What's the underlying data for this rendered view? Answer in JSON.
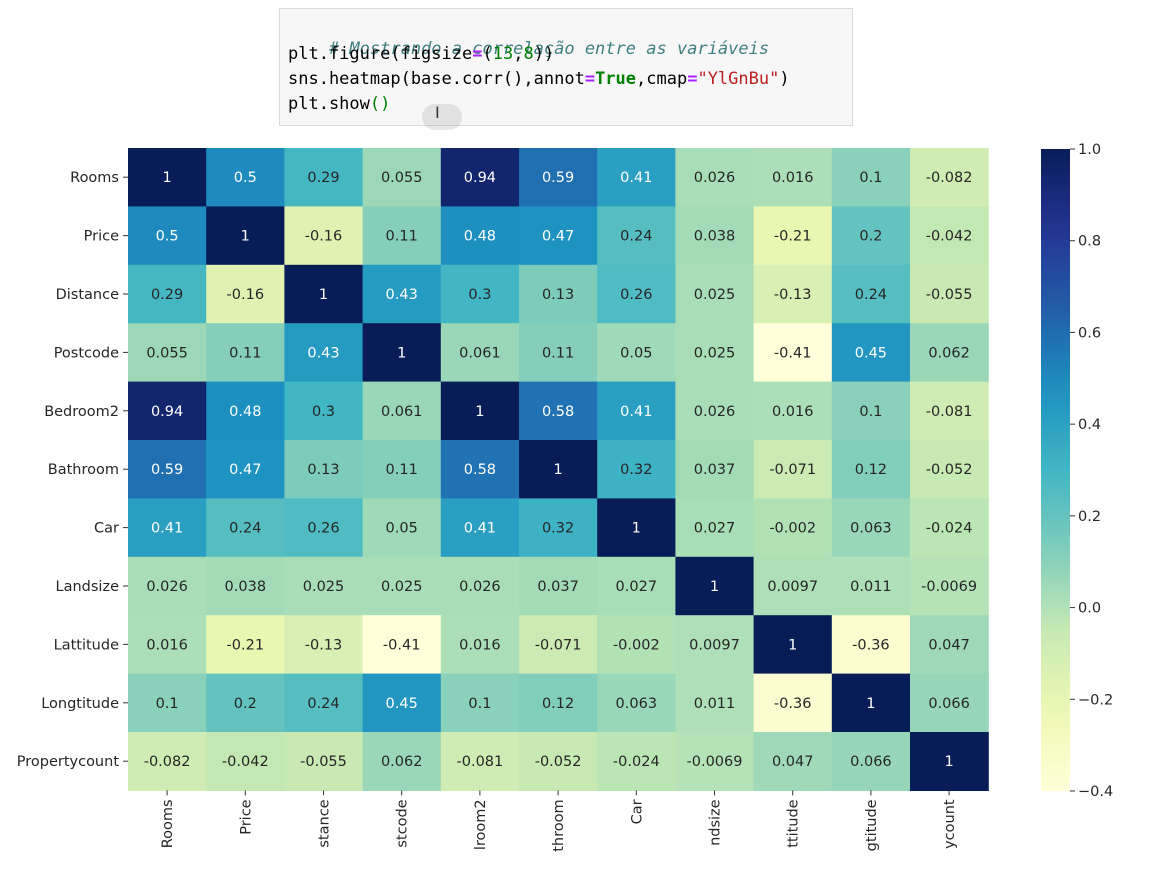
{
  "code_cell": {
    "comment": "# Mostrando a correlação entre as variáveis",
    "line2": {
      "a": "plt.figure(figsize",
      "eq": "=",
      "b": "(",
      "n1": "13",
      "c": ",",
      "n2": "8",
      "d": "))"
    },
    "line3": {
      "a": "sns.heatmap(base.corr(),annot",
      "eq1": "=",
      "kw": "True",
      "b": ",cmap",
      "eq2": "=",
      "str": "\"YlGnBu\"",
      "c": ")"
    },
    "line4": {
      "a": "plt.show",
      "paren": "()"
    },
    "cursor_icon": "text-cursor-icon"
  },
  "chart_data": {
    "type": "heatmap",
    "title": "",
    "colormap": "YlGnBu",
    "row_labels": [
      "Rooms",
      "Price",
      "Distance",
      "Postcode",
      "Bedroom2",
      "Bathroom",
      "Car",
      "Landsize",
      "Lattitude",
      "Longtitude",
      "Propertycount"
    ],
    "col_labels": [
      "Rooms",
      "Price",
      "stance",
      "stcode",
      "lroom2",
      "throom",
      "Car",
      "ndsize",
      "ttitude",
      "gtitude",
      "ycount"
    ],
    "annotations": [
      [
        "1",
        "0.5",
        "0.29",
        "0.055",
        "0.94",
        "0.59",
        "0.41",
        "0.026",
        "0.016",
        "0.1",
        "-0.082"
      ],
      [
        "0.5",
        "1",
        "-0.16",
        "0.11",
        "0.48",
        "0.47",
        "0.24",
        "0.038",
        "-0.21",
        "0.2",
        "-0.042"
      ],
      [
        "0.29",
        "-0.16",
        "1",
        "0.43",
        "0.3",
        "0.13",
        "0.26",
        "0.025",
        "-0.13",
        "0.24",
        "-0.055"
      ],
      [
        "0.055",
        "0.11",
        "0.43",
        "1",
        "0.061",
        "0.11",
        "0.05",
        "0.025",
        "-0.41",
        "0.45",
        "0.062"
      ],
      [
        "0.94",
        "0.48",
        "0.3",
        "0.061",
        "1",
        "0.58",
        "0.41",
        "0.026",
        "0.016",
        "0.1",
        "-0.081"
      ],
      [
        "0.59",
        "0.47",
        "0.13",
        "0.11",
        "0.58",
        "1",
        "0.32",
        "0.037",
        "-0.071",
        "0.12",
        "-0.052"
      ],
      [
        "0.41",
        "0.24",
        "0.26",
        "0.05",
        "0.41",
        "0.32",
        "1",
        "0.027",
        "-0.002",
        "0.063",
        "-0.024"
      ],
      [
        "0.026",
        "0.038",
        "0.025",
        "0.025",
        "0.026",
        "0.037",
        "0.027",
        "1",
        "0.0097",
        "0.011",
        "-0.0069"
      ],
      [
        "0.016",
        "-0.21",
        "-0.13",
        "-0.41",
        "0.016",
        "-0.071",
        "-0.002",
        "0.0097",
        "1",
        "-0.36",
        "0.047"
      ],
      [
        "0.1",
        "0.2",
        "0.24",
        "0.45",
        "0.1",
        "0.12",
        "0.063",
        "0.011",
        "-0.36",
        "1",
        "0.066"
      ],
      [
        "-0.082",
        "-0.042",
        "-0.055",
        "0.062",
        "-0.081",
        "-0.052",
        "-0.024",
        "-0.0069",
        "0.047",
        "0.066",
        "1"
      ]
    ],
    "vmin": -0.4,
    "vmax": 1.0,
    "colorbar_ticks": [
      "1.0",
      "0.8",
      "0.6",
      "0.4",
      "0.2",
      "0.0",
      "−0.2",
      "−0.4"
    ],
    "colorbar_values": [
      1.0,
      0.8,
      0.6,
      0.4,
      0.2,
      0.0,
      -0.2,
      -0.4
    ]
  }
}
